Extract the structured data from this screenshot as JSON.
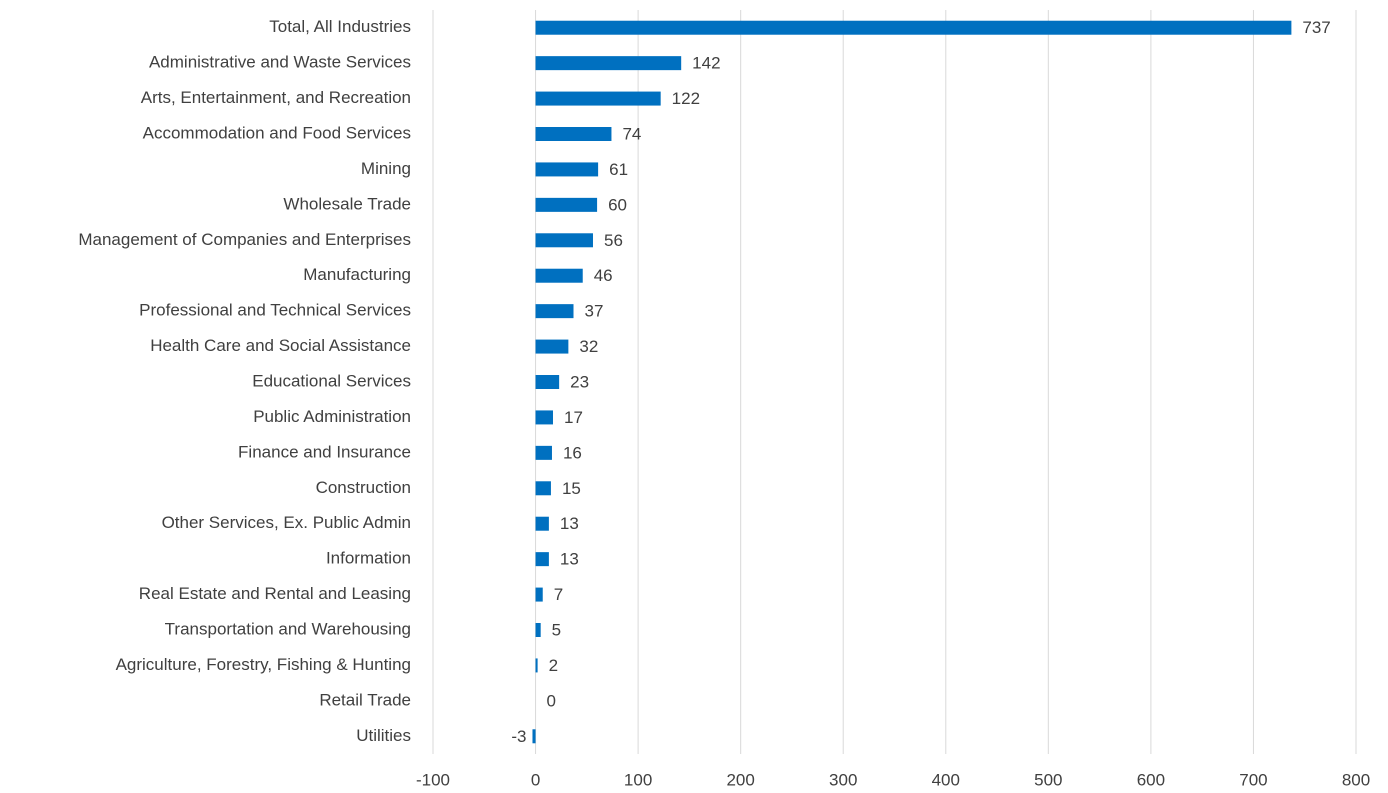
{
  "chart_data": {
    "type": "bar",
    "orientation": "horizontal",
    "categories": [
      "Total, All Industries",
      "Administrative and Waste Services",
      "Arts, Entertainment, and Recreation",
      "Accommodation and Food Services",
      "Mining",
      "Wholesale Trade",
      "Management of Companies and Enterprises",
      "Manufacturing",
      "Professional and Technical Services",
      "Health Care and Social Assistance",
      "Educational Services",
      "Public Administration",
      "Finance and Insurance",
      "Construction",
      "Other Services, Ex. Public Admin",
      "Information",
      "Real Estate and Rental and Leasing",
      "Transportation and Warehousing",
      "Agriculture, Forestry, Fishing & Hunting",
      "Retail Trade",
      "Utilities"
    ],
    "values": [
      737,
      142,
      122,
      74,
      61,
      60,
      56,
      46,
      37,
      32,
      23,
      17,
      16,
      15,
      13,
      13,
      7,
      5,
      2,
      0,
      -3
    ],
    "color": "#0070c0",
    "xlim": [
      -100,
      800
    ],
    "xticks": [
      -100,
      0,
      100,
      200,
      300,
      400,
      500,
      600,
      700,
      800
    ],
    "grid": true
  }
}
